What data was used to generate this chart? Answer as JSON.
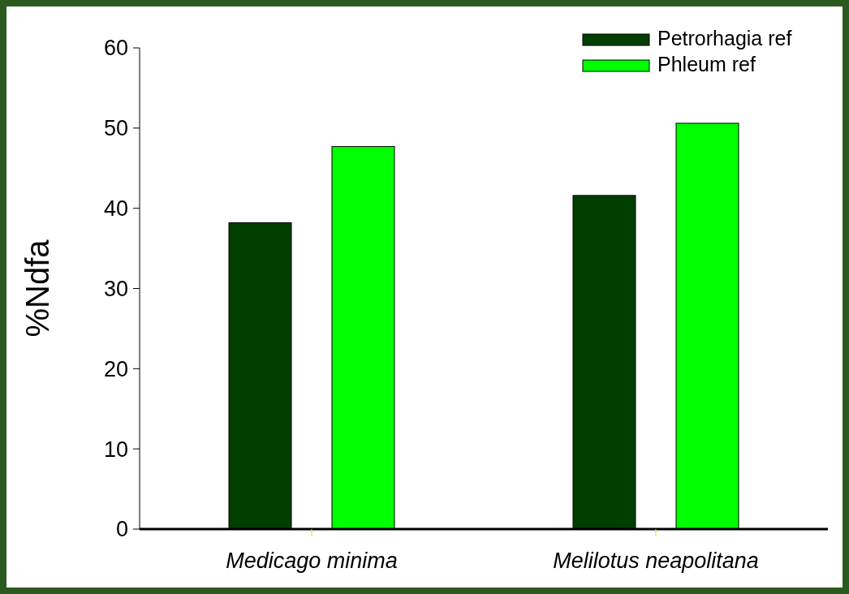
{
  "chart_data": {
    "type": "bar",
    "ylabel": "%Ndfa",
    "categories": [
      "Medicago minima",
      "Melilotus neapolitana"
    ],
    "series": [
      {
        "name": "Petrorhagia ref",
        "color": "#003f00",
        "values": [
          38.2,
          41.6
        ]
      },
      {
        "name": "Phleum ref",
        "color": "#00ff00",
        "values": [
          47.7,
          50.6
        ]
      }
    ],
    "ylim": [
      0,
      60
    ],
    "yticks": [
      0,
      10,
      20,
      30,
      40,
      50,
      60
    ],
    "grid": false,
    "legend": "top right"
  }
}
